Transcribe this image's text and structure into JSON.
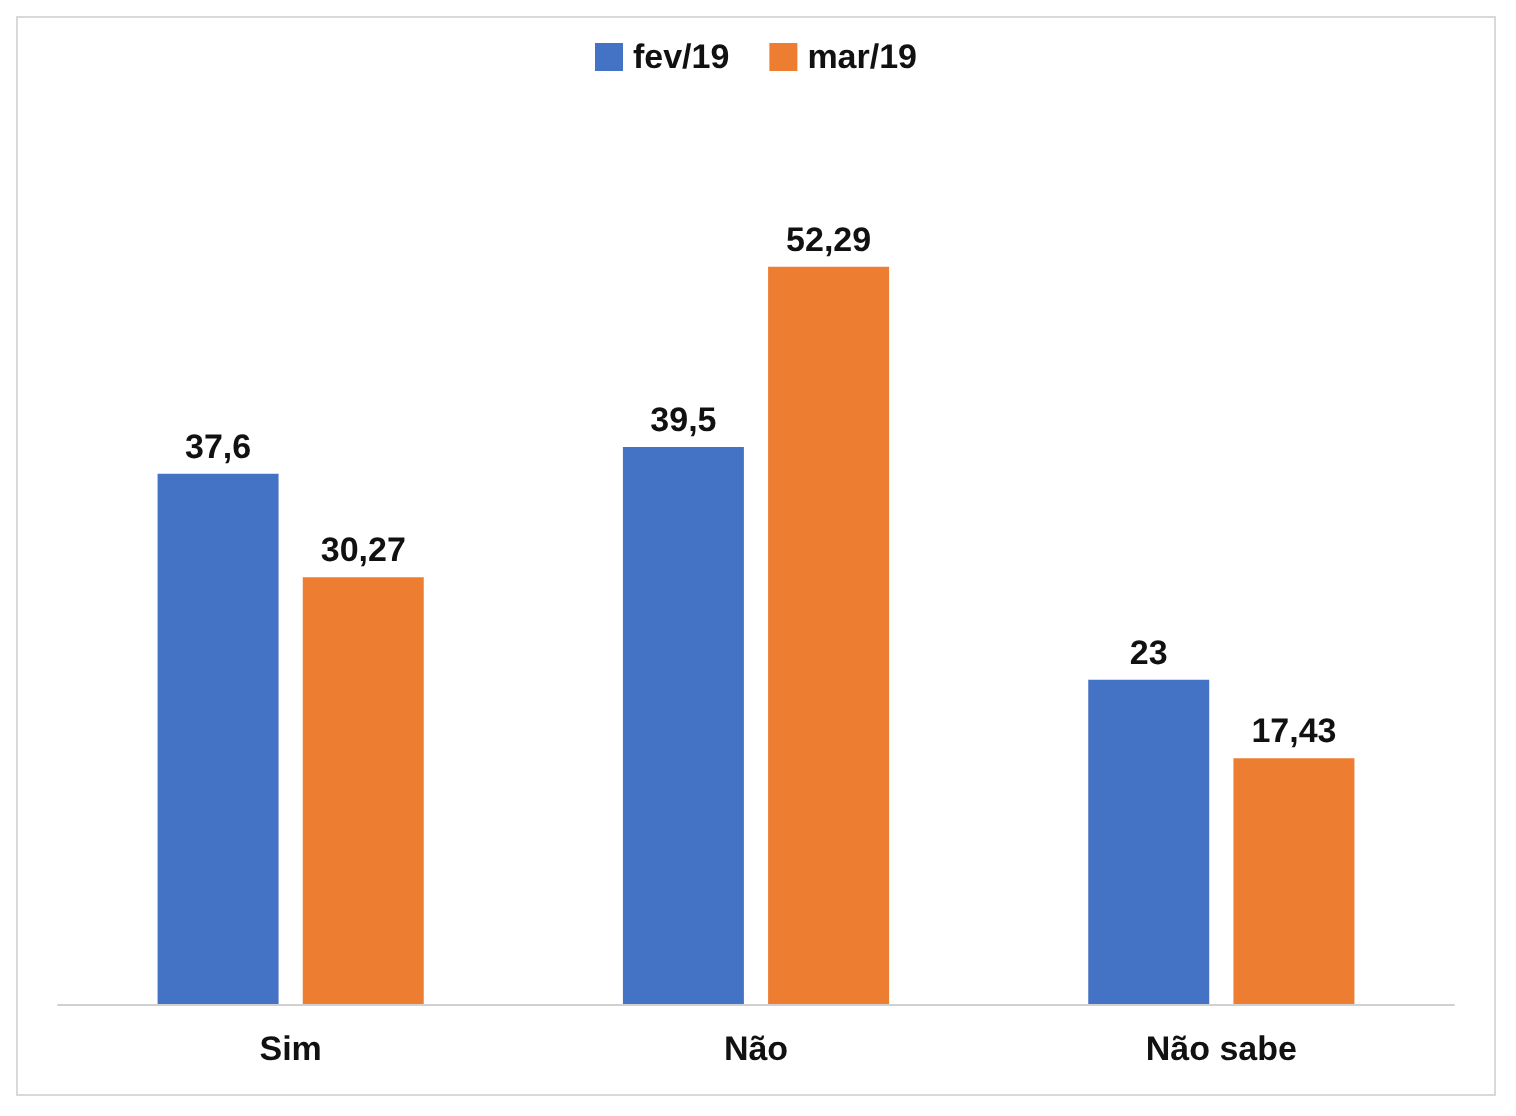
{
  "chart_data": {
    "type": "bar",
    "categories": [
      "Sim",
      "Não",
      "Não sabe"
    ],
    "series": [
      {
        "name": "fev/19",
        "color": "#4472c4",
        "values": [
          37.6,
          39.5,
          23
        ],
        "value_labels": [
          "37,6",
          "39,5",
          "23"
        ]
      },
      {
        "name": "mar/19",
        "color": "#ed7d31",
        "values": [
          30.27,
          52.29,
          17.43
        ],
        "value_labels": [
          "30,27",
          "52,29",
          "17,43"
        ]
      }
    ],
    "legend": "top",
    "tick_labels": "x"
  }
}
